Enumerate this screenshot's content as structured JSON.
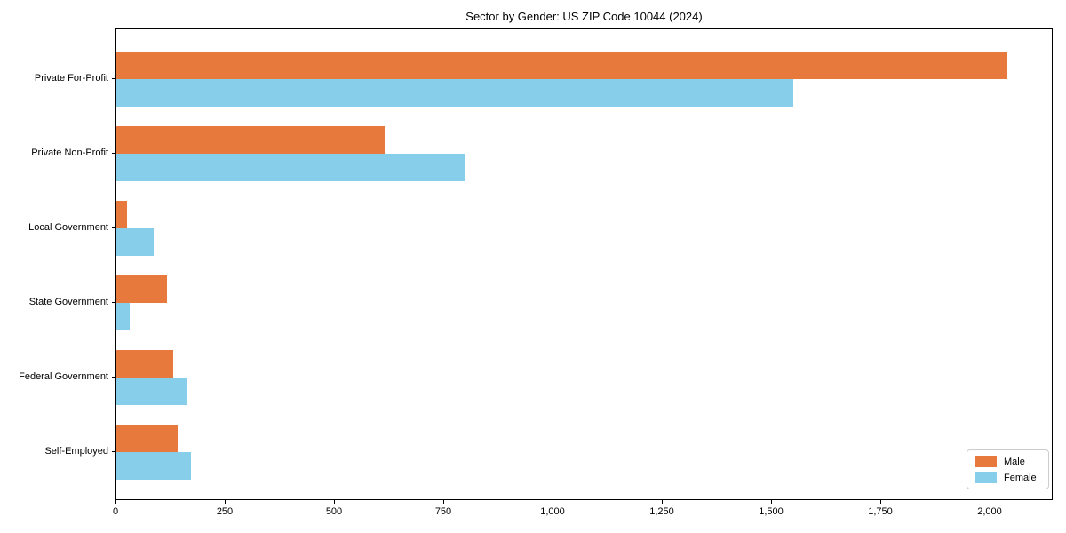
{
  "figure": {
    "background": "#ffffff",
    "frame_color": "#000000"
  },
  "chart_data": {
    "type": "bar",
    "orientation": "horizontal",
    "title": "Sector by Gender: US ZIP Code 10044 (2024)",
    "categories": [
      "Private For-Profit",
      "Private Non-Profit",
      "Local Government",
      "State Government",
      "Federal Government",
      "Self-Employed"
    ],
    "series": [
      {
        "name": "Male",
        "color": "#e8793d",
        "values": [
          2040,
          615,
          25,
          115,
          130,
          140
        ]
      },
      {
        "name": "Female",
        "color": "#87ceeb",
        "values": [
          1550,
          800,
          85,
          30,
          160,
          170
        ]
      }
    ],
    "xlabel": "",
    "ylabel": "",
    "xlim": [
      0,
      2145
    ],
    "xticks": {
      "values": [
        0,
        250,
        500,
        750,
        1000,
        1250,
        1500,
        1750,
        2000
      ],
      "labels": [
        "0",
        "250",
        "500",
        "750",
        "1,000",
        "1,250",
        "1,500",
        "1,750",
        "2,000"
      ]
    },
    "legend": {
      "position": "lower right",
      "entries": [
        "Male",
        "Female"
      ]
    },
    "grid": false
  }
}
